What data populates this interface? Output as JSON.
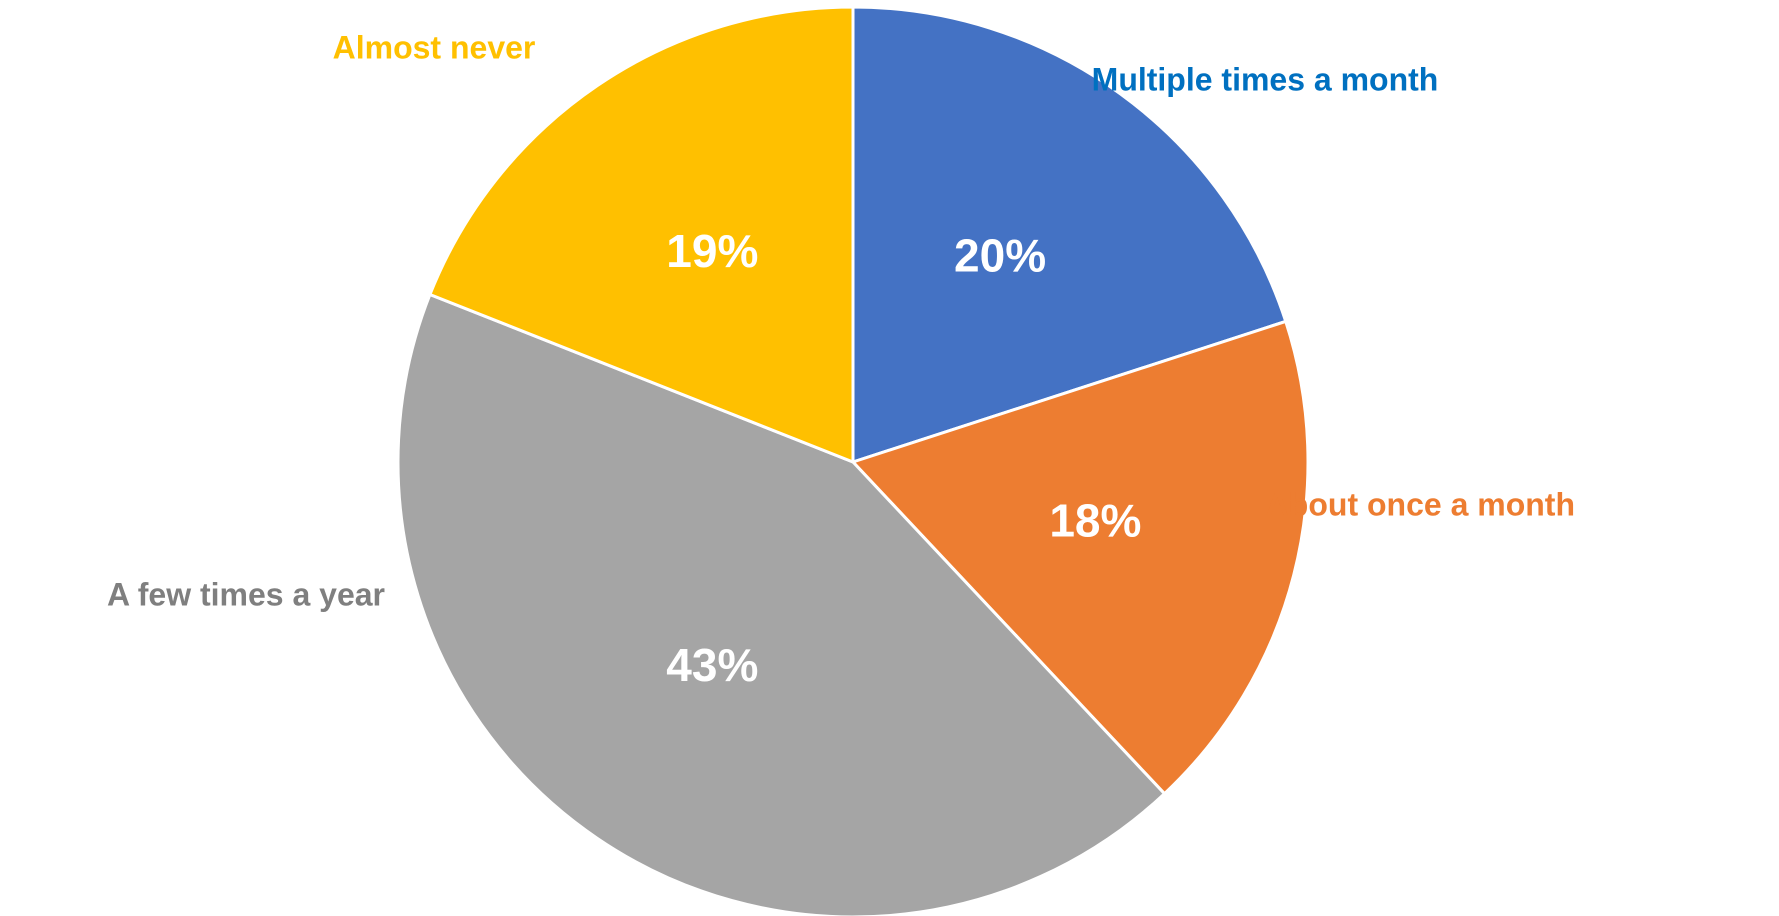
{
  "chart_data": {
    "type": "pie",
    "title": "",
    "legend": "none",
    "slices": [
      {
        "label": "Multiple times a month",
        "value": 20,
        "display": "20%",
        "color": "#4472C4",
        "label_color": "#0070C0"
      },
      {
        "label": "About once a month",
        "value": 18,
        "display": "18%",
        "color": "#ED7D31",
        "label_color": "#ED7D31"
      },
      {
        "label": "A few times a year",
        "value": 43,
        "display": "43%",
        "color": "#A5A5A5",
        "label_color": "#7F7F7F"
      },
      {
        "label": "Almost never",
        "value": 19,
        "display": "19%",
        "color": "#FFC000",
        "label_color": "#FFC000"
      }
    ]
  }
}
